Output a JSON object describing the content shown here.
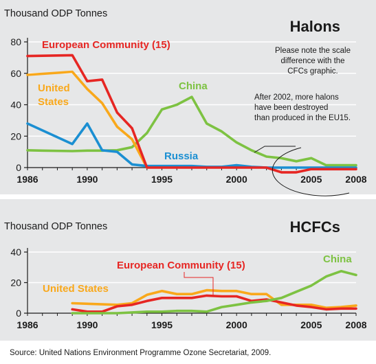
{
  "source": "Source: United Nations Environment Programme Ozone Secretariat, 2009.",
  "chart_data": [
    {
      "type": "line",
      "title": "Halons",
      "ylabel": "Thousand ODP Tonnes",
      "xlim": [
        1986,
        2008
      ],
      "ylim": [
        0,
        80
      ],
      "yticks": [
        0,
        20,
        40,
        60,
        80
      ],
      "xticks": [
        1986,
        1990,
        1995,
        2000,
        2005,
        2008
      ],
      "grid": true,
      "notes": [
        "Please note the scale",
        "difference with the",
        "CFCs graphic."
      ],
      "annotation": [
        "After 2002, more halons",
        "have been destroyed",
        "than produced in the EU15."
      ],
      "series": [
        {
          "name": "China",
          "color": "#7dc242",
          "points": [
            [
              1986,
              11
            ],
            [
              1987,
              10.8
            ],
            [
              1989,
              10.5
            ],
            [
              1990,
              10.8
            ],
            [
              1991,
              10.8
            ],
            [
              1992,
              11
            ],
            [
              1993,
              13
            ],
            [
              1994,
              22
            ],
            [
              1995,
              37
            ],
            [
              1996,
              40
            ],
            [
              1997,
              45
            ],
            [
              1998,
              28
            ],
            [
              1999,
              23
            ],
            [
              2000,
              16
            ],
            [
              2001,
              11
            ],
            [
              2002,
              7
            ],
            [
              2003,
              6
            ],
            [
              2004,
              4
            ],
            [
              2005,
              6
            ],
            [
              2006,
              1.5
            ],
            [
              2007,
              1.5
            ],
            [
              2008,
              1.5
            ]
          ]
        },
        {
          "name": "United States",
          "color": "#f9a81b",
          "points": [
            [
              1986,
              59
            ],
            [
              1989,
              61
            ],
            [
              1990,
              50
            ],
            [
              1991,
              41
            ],
            [
              1992,
              26
            ],
            [
              1993,
              18
            ],
            [
              1994,
              0
            ]
          ]
        },
        {
          "name": "Russia",
          "color": "#1b8fd2",
          "points": [
            [
              1986,
              28
            ],
            [
              1989,
              15
            ],
            [
              1990,
              28
            ],
            [
              1991,
              11
            ],
            [
              1992,
              10
            ],
            [
              1993,
              2
            ],
            [
              1994,
              1
            ],
            [
              1995,
              1
            ],
            [
              1996,
              1
            ],
            [
              1997,
              1
            ],
            [
              1998,
              0.5
            ],
            [
              1999,
              0.5
            ],
            [
              2000,
              1.5
            ],
            [
              2001,
              0.5
            ],
            [
              2002,
              0
            ],
            [
              2003,
              0
            ],
            [
              2004,
              0
            ],
            [
              2005,
              0
            ],
            [
              2006,
              0
            ],
            [
              2007,
              0
            ],
            [
              2008,
              0
            ]
          ]
        },
        {
          "name": "European Community (15)",
          "color": "#e62623",
          "points": [
            [
              1986,
              71
            ],
            [
              1989,
              71.5
            ],
            [
              1990,
              55
            ],
            [
              1991,
              56
            ],
            [
              1992,
              35
            ],
            [
              1993,
              25
            ],
            [
              1994,
              0
            ],
            [
              1995,
              0
            ],
            [
              2002,
              0
            ],
            [
              2003,
              -3
            ],
            [
              2004,
              -3
            ],
            [
              2005,
              -1
            ],
            [
              2006,
              -1
            ],
            [
              2007,
              -1
            ],
            [
              2008,
              -1
            ]
          ]
        }
      ]
    },
    {
      "type": "line",
      "title": "HCFCs",
      "ylabel": "Thousand ODP Tonnes",
      "xlim": [
        1986,
        2008
      ],
      "ylim": [
        0,
        40
      ],
      "yticks": [
        0,
        20,
        40
      ],
      "xticks": [
        1986,
        1990,
        1995,
        2000,
        2005,
        2008
      ],
      "grid": true,
      "series": [
        {
          "name": "United States",
          "color": "#f9a81b",
          "points": [
            [
              1989,
              6.5
            ],
            [
              1992,
              5.5
            ],
            [
              1993,
              6.5
            ],
            [
              1994,
              12
            ],
            [
              1995,
              14.5
            ],
            [
              1996,
              12.5
            ],
            [
              1997,
              12.5
            ],
            [
              1998,
              15
            ],
            [
              1999,
              14.5
            ],
            [
              2000,
              14.5
            ],
            [
              2001,
              12.5
            ],
            [
              2002,
              12.5
            ],
            [
              2003,
              5.5
            ],
            [
              2004,
              5.5
            ],
            [
              2005,
              5.5
            ],
            [
              2006,
              3.5
            ],
            [
              2007,
              4
            ],
            [
              2008,
              5
            ]
          ]
        },
        {
          "name": "European Community (15)",
          "color": "#e62623",
          "points": [
            [
              1989,
              2.5
            ],
            [
              1990,
              1
            ],
            [
              1991,
              1
            ],
            [
              1992,
              4.5
            ],
            [
              1993,
              5.5
            ],
            [
              1994,
              8
            ],
            [
              1995,
              10
            ],
            [
              1996,
              10
            ],
            [
              1997,
              10
            ],
            [
              1998,
              11.5
            ],
            [
              1999,
              11
            ],
            [
              2000,
              11
            ],
            [
              2001,
              8
            ],
            [
              2002,
              9
            ],
            [
              2003,
              7
            ],
            [
              2004,
              5
            ],
            [
              2005,
              4
            ],
            [
              2006,
              2.5
            ],
            [
              2007,
              3
            ],
            [
              2008,
              3
            ]
          ]
        },
        {
          "name": "China",
          "color": "#7dc242",
          "points": [
            [
              1989,
              0
            ],
            [
              1990,
              0
            ],
            [
              1991,
              0
            ],
            [
              1992,
              0
            ],
            [
              1993,
              0.5
            ],
            [
              1994,
              1
            ],
            [
              1995,
              1
            ],
            [
              1996,
              1.5
            ],
            [
              1997,
              1.5
            ],
            [
              1998,
              1
            ],
            [
              1999,
              4
            ],
            [
              2000,
              5.5
            ],
            [
              2001,
              7
            ],
            [
              2002,
              8
            ],
            [
              2003,
              10
            ],
            [
              2004,
              14
            ],
            [
              2005,
              18
            ],
            [
              2006,
              24
            ],
            [
              2007,
              27.5
            ],
            [
              2008,
              25
            ]
          ]
        }
      ]
    }
  ]
}
